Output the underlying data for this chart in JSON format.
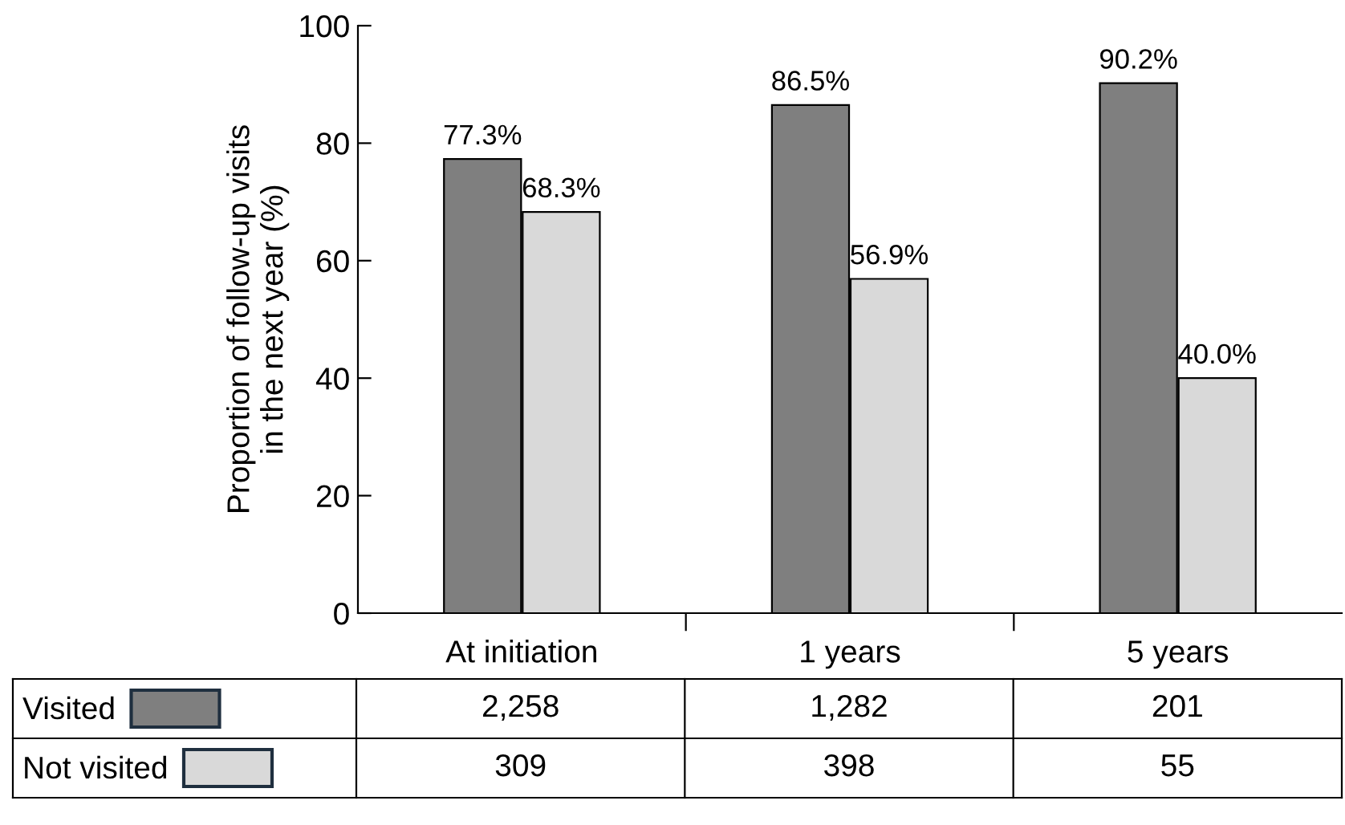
{
  "chart_data": {
    "type": "bar",
    "ylabel": "Proportion of follow-up visits\nin the next year (%)",
    "categories": [
      "At initiation",
      "1 years",
      "5 years"
    ],
    "series": [
      {
        "name": "Visited",
        "color": "#7f7f7f",
        "values": [
          77.3,
          86.5,
          90.2
        ],
        "value_labels": [
          "77.3%",
          "86.5%",
          "90.2%"
        ]
      },
      {
        "name": "Not visited",
        "color": "#d9d9d9",
        "values": [
          68.3,
          56.9,
          40.0
        ],
        "value_labels": [
          "68.3%",
          "56.9%",
          "40.0%"
        ]
      }
    ],
    "ylim": [
      0,
      100
    ],
    "yticks": [
      0,
      20,
      40,
      60,
      80,
      100
    ],
    "grid": false,
    "legend": "bottom",
    "annotations": [
      "2,258",
      "1,282",
      "201",
      "309",
      "398",
      "55"
    ]
  }
}
